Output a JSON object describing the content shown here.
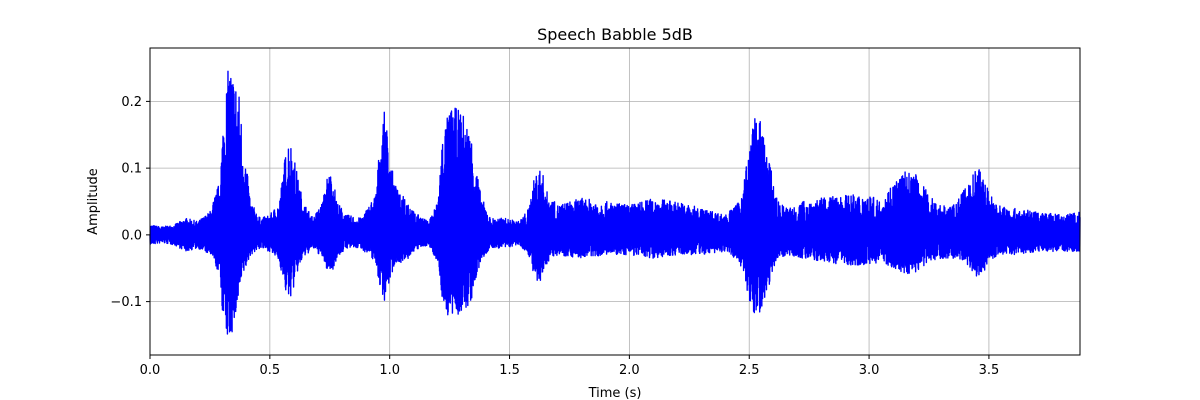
{
  "chart_data": {
    "type": "line",
    "title": "Speech Babble 5dB",
    "xlabel": "Time (s)",
    "ylabel": "Amplitude",
    "xlim": [
      0.0,
      3.88
    ],
    "ylim": [
      -0.18,
      0.28
    ],
    "xticks": [
      0.0,
      0.5,
      1.0,
      1.5,
      2.0,
      2.5,
      3.0,
      3.5
    ],
    "xtick_labels": [
      "0.0",
      "0.5",
      "1.0",
      "1.5",
      "2.0",
      "2.5",
      "3.0",
      "3.5"
    ],
    "yticks": [
      -0.1,
      0.0,
      0.1,
      0.2
    ],
    "ytick_labels": [
      "−0.1",
      "0.0",
      "0.1",
      "0.2"
    ],
    "grid": true,
    "series": [
      {
        "color": "#0000ff",
        "envelope": {
          "t": [
            0.0,
            0.05,
            0.1,
            0.15,
            0.2,
            0.25,
            0.29,
            0.31,
            0.33,
            0.35,
            0.37,
            0.39,
            0.42,
            0.46,
            0.5,
            0.54,
            0.56,
            0.58,
            0.6,
            0.62,
            0.64,
            0.68,
            0.72,
            0.74,
            0.76,
            0.78,
            0.82,
            0.88,
            0.94,
            0.96,
            0.98,
            1.0,
            1.02,
            1.04,
            1.06,
            1.1,
            1.16,
            1.2,
            1.22,
            1.25,
            1.28,
            1.31,
            1.34,
            1.38,
            1.42,
            1.48,
            1.54,
            1.58,
            1.6,
            1.62,
            1.64,
            1.66,
            1.7,
            1.8,
            1.9,
            2.0,
            2.1,
            2.2,
            2.3,
            2.4,
            2.46,
            2.5,
            2.52,
            2.54,
            2.56,
            2.58,
            2.6,
            2.62,
            2.66,
            2.72,
            2.8,
            2.9,
            3.0,
            3.05,
            3.1,
            3.15,
            3.2,
            3.25,
            3.3,
            3.36,
            3.4,
            3.44,
            3.46,
            3.48,
            3.5,
            3.54,
            3.6,
            3.7,
            3.8,
            3.88
          ],
          "top": [
            0.015,
            0.012,
            0.015,
            0.025,
            0.02,
            0.035,
            0.08,
            0.2,
            0.26,
            0.24,
            0.22,
            0.14,
            0.05,
            0.025,
            0.03,
            0.05,
            0.11,
            0.15,
            0.12,
            0.08,
            0.05,
            0.025,
            0.05,
            0.09,
            0.095,
            0.05,
            0.03,
            0.025,
            0.06,
            0.14,
            0.19,
            0.12,
            0.08,
            0.06,
            0.065,
            0.035,
            0.02,
            0.05,
            0.15,
            0.19,
            0.19,
            0.18,
            0.15,
            0.06,
            0.025,
            0.025,
            0.02,
            0.04,
            0.08,
            0.105,
            0.09,
            0.06,
            0.045,
            0.055,
            0.05,
            0.045,
            0.055,
            0.05,
            0.04,
            0.03,
            0.05,
            0.13,
            0.175,
            0.18,
            0.15,
            0.12,
            0.08,
            0.05,
            0.04,
            0.05,
            0.055,
            0.06,
            0.06,
            0.05,
            0.08,
            0.095,
            0.09,
            0.06,
            0.045,
            0.045,
            0.07,
            0.095,
            0.1,
            0.085,
            0.065,
            0.045,
            0.04,
            0.035,
            0.03,
            0.035
          ],
          "bottom": [
            -0.015,
            -0.012,
            -0.015,
            -0.025,
            -0.02,
            -0.03,
            -0.06,
            -0.15,
            -0.16,
            -0.14,
            -0.1,
            -0.06,
            -0.03,
            -0.02,
            -0.025,
            -0.04,
            -0.08,
            -0.1,
            -0.08,
            -0.05,
            -0.035,
            -0.02,
            -0.035,
            -0.055,
            -0.055,
            -0.035,
            -0.02,
            -0.02,
            -0.04,
            -0.08,
            -0.1,
            -0.07,
            -0.045,
            -0.04,
            -0.045,
            -0.025,
            -0.015,
            -0.04,
            -0.1,
            -0.13,
            -0.12,
            -0.12,
            -0.1,
            -0.04,
            -0.02,
            -0.02,
            -0.015,
            -0.03,
            -0.06,
            -0.085,
            -0.06,
            -0.04,
            -0.03,
            -0.035,
            -0.03,
            -0.03,
            -0.035,
            -0.03,
            -0.03,
            -0.025,
            -0.04,
            -0.1,
            -0.125,
            -0.12,
            -0.1,
            -0.08,
            -0.05,
            -0.035,
            -0.03,
            -0.035,
            -0.04,
            -0.045,
            -0.045,
            -0.04,
            -0.05,
            -0.06,
            -0.055,
            -0.04,
            -0.035,
            -0.035,
            -0.04,
            -0.06,
            -0.065,
            -0.055,
            -0.04,
            -0.03,
            -0.03,
            -0.025,
            -0.025,
            -0.025
          ]
        }
      }
    ]
  }
}
